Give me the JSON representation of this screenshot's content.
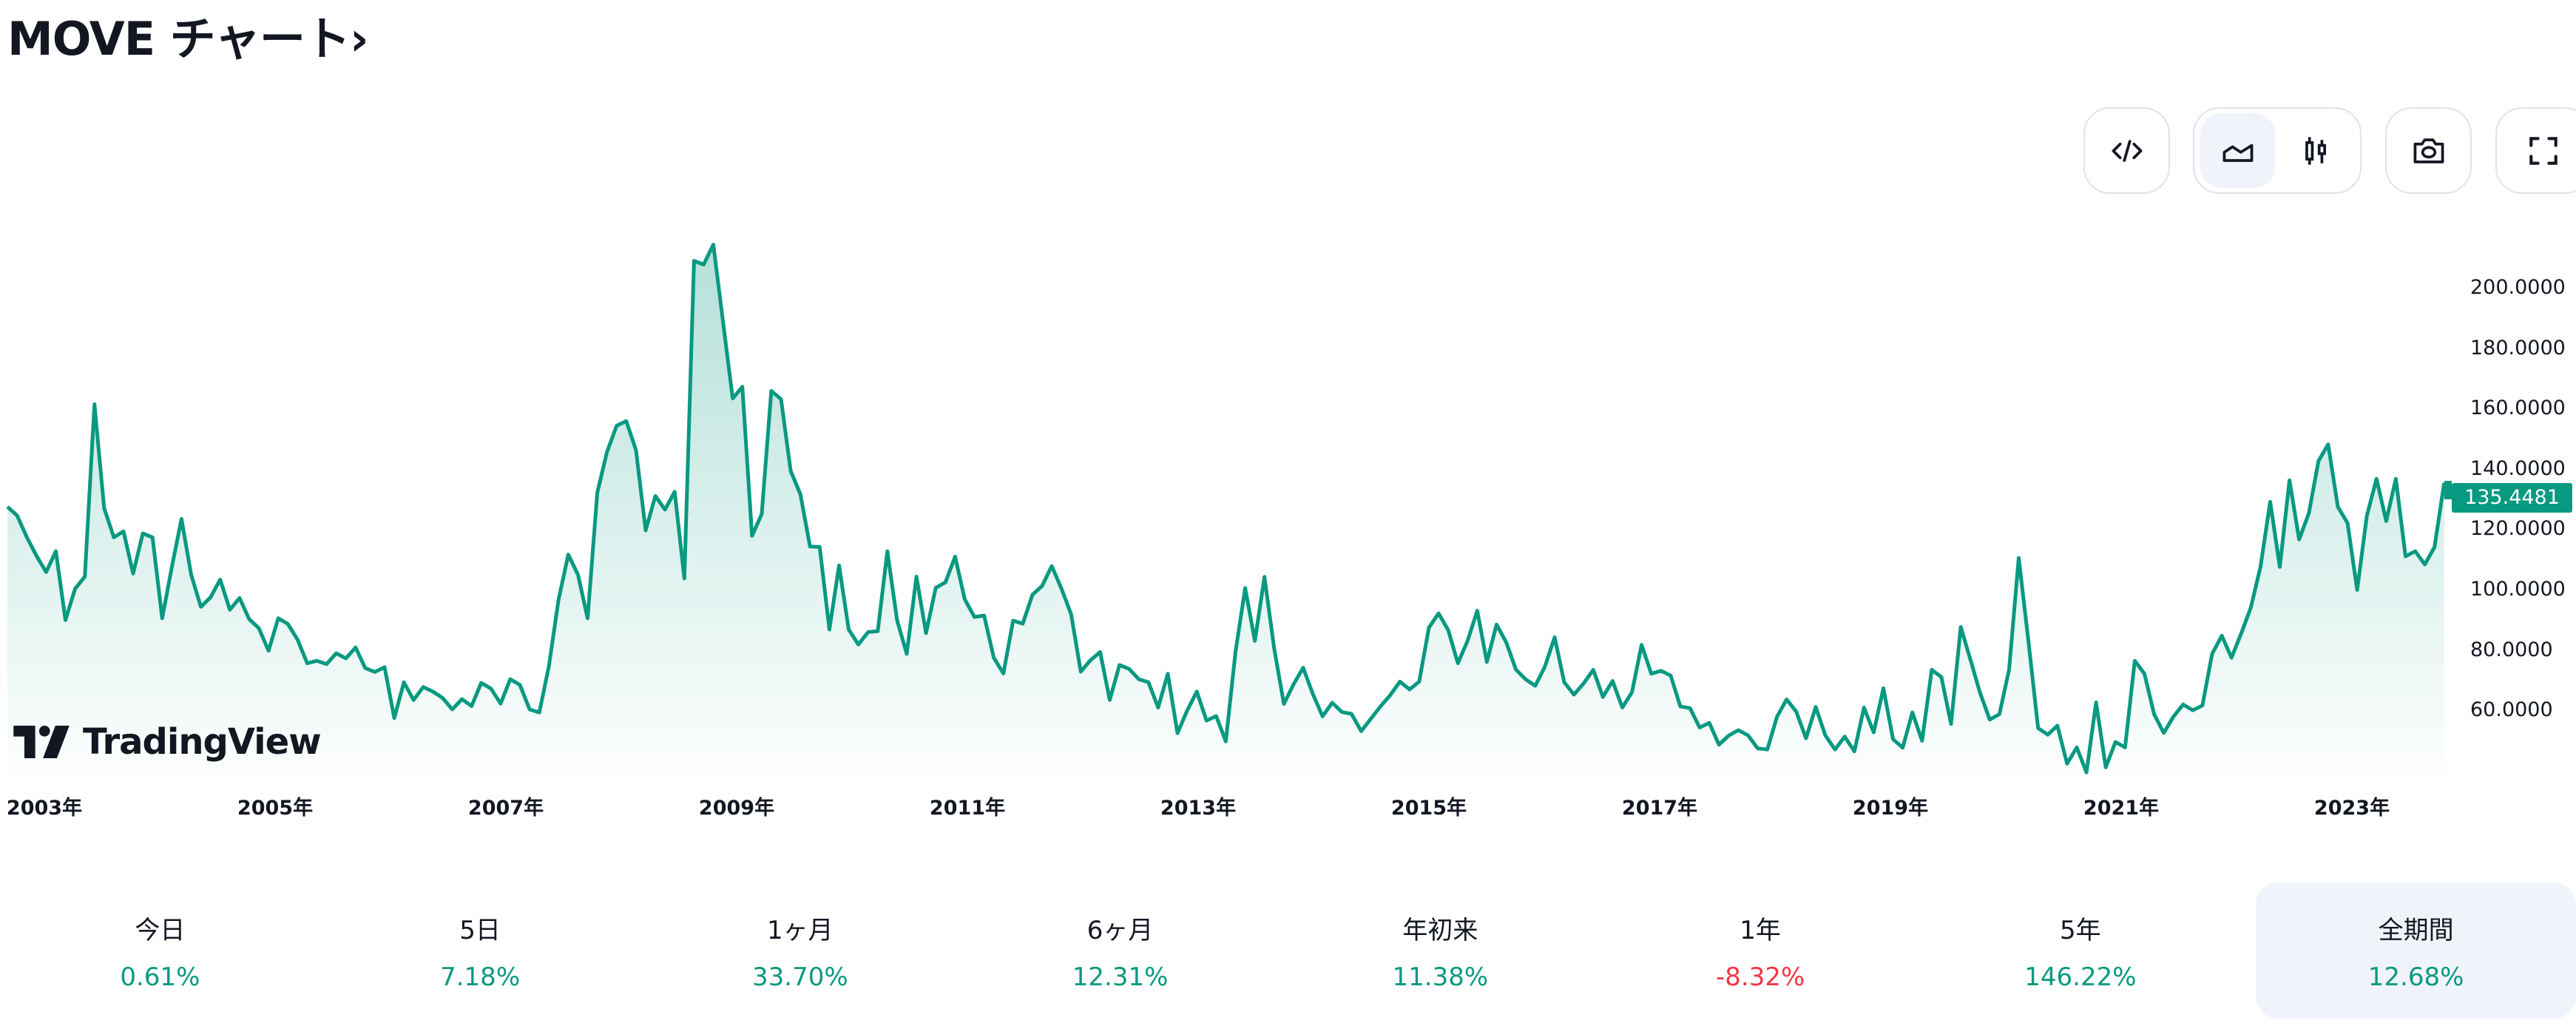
{
  "header": {
    "title": "MOVE チャート›"
  },
  "toolbar": {
    "embed_icon": "code-icon",
    "chart_types": [
      {
        "icon": "area-chart-icon",
        "active": true
      },
      {
        "icon": "candlestick-icon",
        "active": false
      }
    ],
    "snapshot_icon": "camera-icon",
    "fullscreen_icon": "fullscreen-icon"
  },
  "branding": {
    "logo_text": "TradingView"
  },
  "colors": {
    "line": "#089981",
    "positive": "#089981",
    "negative": "#f23645",
    "active_bg": "#f0f3fa"
  },
  "chart_data": {
    "type": "area",
    "title": "MOVE",
    "interval": "monthly",
    "x_range_years": [
      2002.68,
      2023.8
    ],
    "ylim": [
      40,
      215
    ],
    "y_ticks": [
      60,
      80,
      100,
      120,
      140,
      160,
      180,
      200
    ],
    "y_tick_labels": [
      "60.0000",
      "80.0000",
      "100.0000",
      "120.0000",
      "140.0000",
      "160.0000",
      "180.0000",
      "200.0000"
    ],
    "x_ticks": [
      2003,
      2005,
      2007,
      2009,
      2011,
      2013,
      2015,
      2017,
      2019,
      2021,
      2023
    ],
    "x_tick_labels": [
      "2003年",
      "2005年",
      "2007年",
      "2009年",
      "2011年",
      "2013年",
      "2015年",
      "2017年",
      "2019年",
      "2021年",
      "2023年"
    ],
    "last_value": 135.4481,
    "last_value_label": "135.4481",
    "grid": false,
    "values": [
      127.4,
      124.5,
      117.4,
      111.2,
      105.8,
      112.7,
      89.9,
      100.3,
      104.3,
      161.4,
      127,
      117.3,
      119.3,
      105.3,
      118.6,
      117.3,
      90.5,
      107.4,
      123.4,
      104.9,
      94.3,
      97.4,
      103.3,
      93.3,
      97.2,
      90.2,
      87.2,
      79.7,
      90.5,
      88.6,
      83.4,
      75.6,
      76.4,
      75.3,
      78.9,
      77.2,
      80.8,
      74,
      72.7,
      74.3,
      57.4,
      69.3,
      63.4,
      67.7,
      66.2,
      64.1,
      60.3,
      63.7,
      61.4,
      69.1,
      67.2,
      62.2,
      70.3,
      68.4,
      60.3,
      59.3,
      74.7,
      96.8,
      111.6,
      104.9,
      90.5,
      132.1,
      145.6,
      154.3,
      155.8,
      146.2,
      119.6,
      131,
      126.5,
      132.4,
      103.7,
      208.9,
      207.7,
      214.3,
      188.7,
      163.3,
      167.2,
      117.8,
      125,
      165.8,
      163.1,
      139.3,
      131.6,
      114.3,
      114.1,
      86.8,
      108,
      86.8,
      81.8,
      85.9,
      86.2,
      112.7,
      89.9,
      78.7,
      104.3,
      85.6,
      100.6,
      102.4,
      110.9,
      96.8,
      90.9,
      91.4,
      77.4,
      72.2,
      89.7,
      88.7,
      98.3,
      101.2,
      107.8,
      100.3,
      91.8,
      72.8,
      76.6,
      79.3,
      63.4,
      75,
      73.7,
      70.3,
      69.3,
      60.9,
      72.1,
      52.4,
      59.9,
      66.2,
      56.6,
      58.1,
      49.7,
      79.3,
      100.5,
      83,
      104.2,
      80.5,
      62.1,
      68.6,
      74.1,
      65.4,
      58,
      62.5,
      59.4,
      58.8,
      53.1,
      57.2,
      61.3,
      65,
      69.5,
      66.9,
      69.5,
      87.4,
      92.1,
      86.6,
      75.6,
      83,
      93,
      76,
      88.4,
      82.5,
      73.5,
      70.3,
      68.1,
      74.5,
      84.2,
      69.3,
      65.2,
      68.9,
      73.4,
      64.4,
      69.7,
      60.9,
      66,
      81.7,
      72.1,
      73.1,
      71.5,
      61.3,
      60.7,
      54.3,
      55.8,
      48.6,
      51.6,
      53.4,
      51.7,
      47.4,
      47,
      57.9,
      63.6,
      59.5,
      50.7,
      61.1,
      51.7,
      47,
      51.3,
      46.4,
      60.9,
      52.7,
      67.3,
      50.4,
      47.6,
      59.3,
      49.9,
      73.4,
      71,
      55.5,
      87.6,
      76.8,
      65.8,
      56.9,
      58.7,
      73.5,
      110.5,
      83,
      54.1,
      51.9,
      54.9,
      42.3,
      47.7,
      39.4,
      62.6,
      41.1,
      49.5,
      47.7,
      76.4,
      72.1,
      58.7,
      52.5,
      57.9,
      61.9,
      60,
      61.6,
      78.7,
      84.7,
      77.4,
      85.4,
      94,
      107.5,
      129.1,
      107.5,
      136.2,
      116.6,
      125.3,
      142.6,
      148.1,
      127.4,
      122,
      99.9,
      124.4,
      136.7,
      122.7,
      136.7,
      111,
      112.7,
      108.3,
      114.1,
      135.4
    ]
  },
  "performance": [
    {
      "label": "今日",
      "value": "0.61%",
      "trend": "up"
    },
    {
      "label": "5日",
      "value": "7.18%",
      "trend": "up"
    },
    {
      "label": "1ヶ月",
      "value": "33.70%",
      "trend": "up"
    },
    {
      "label": "6ヶ月",
      "value": "12.31%",
      "trend": "up"
    },
    {
      "label": "年初来",
      "value": "11.38%",
      "trend": "up"
    },
    {
      "label": "1年",
      "value": "-8.32%",
      "trend": "down"
    },
    {
      "label": "5年",
      "value": "146.22%",
      "trend": "up"
    },
    {
      "label": "全期間",
      "value": "12.68%",
      "trend": "up",
      "active": true
    }
  ]
}
